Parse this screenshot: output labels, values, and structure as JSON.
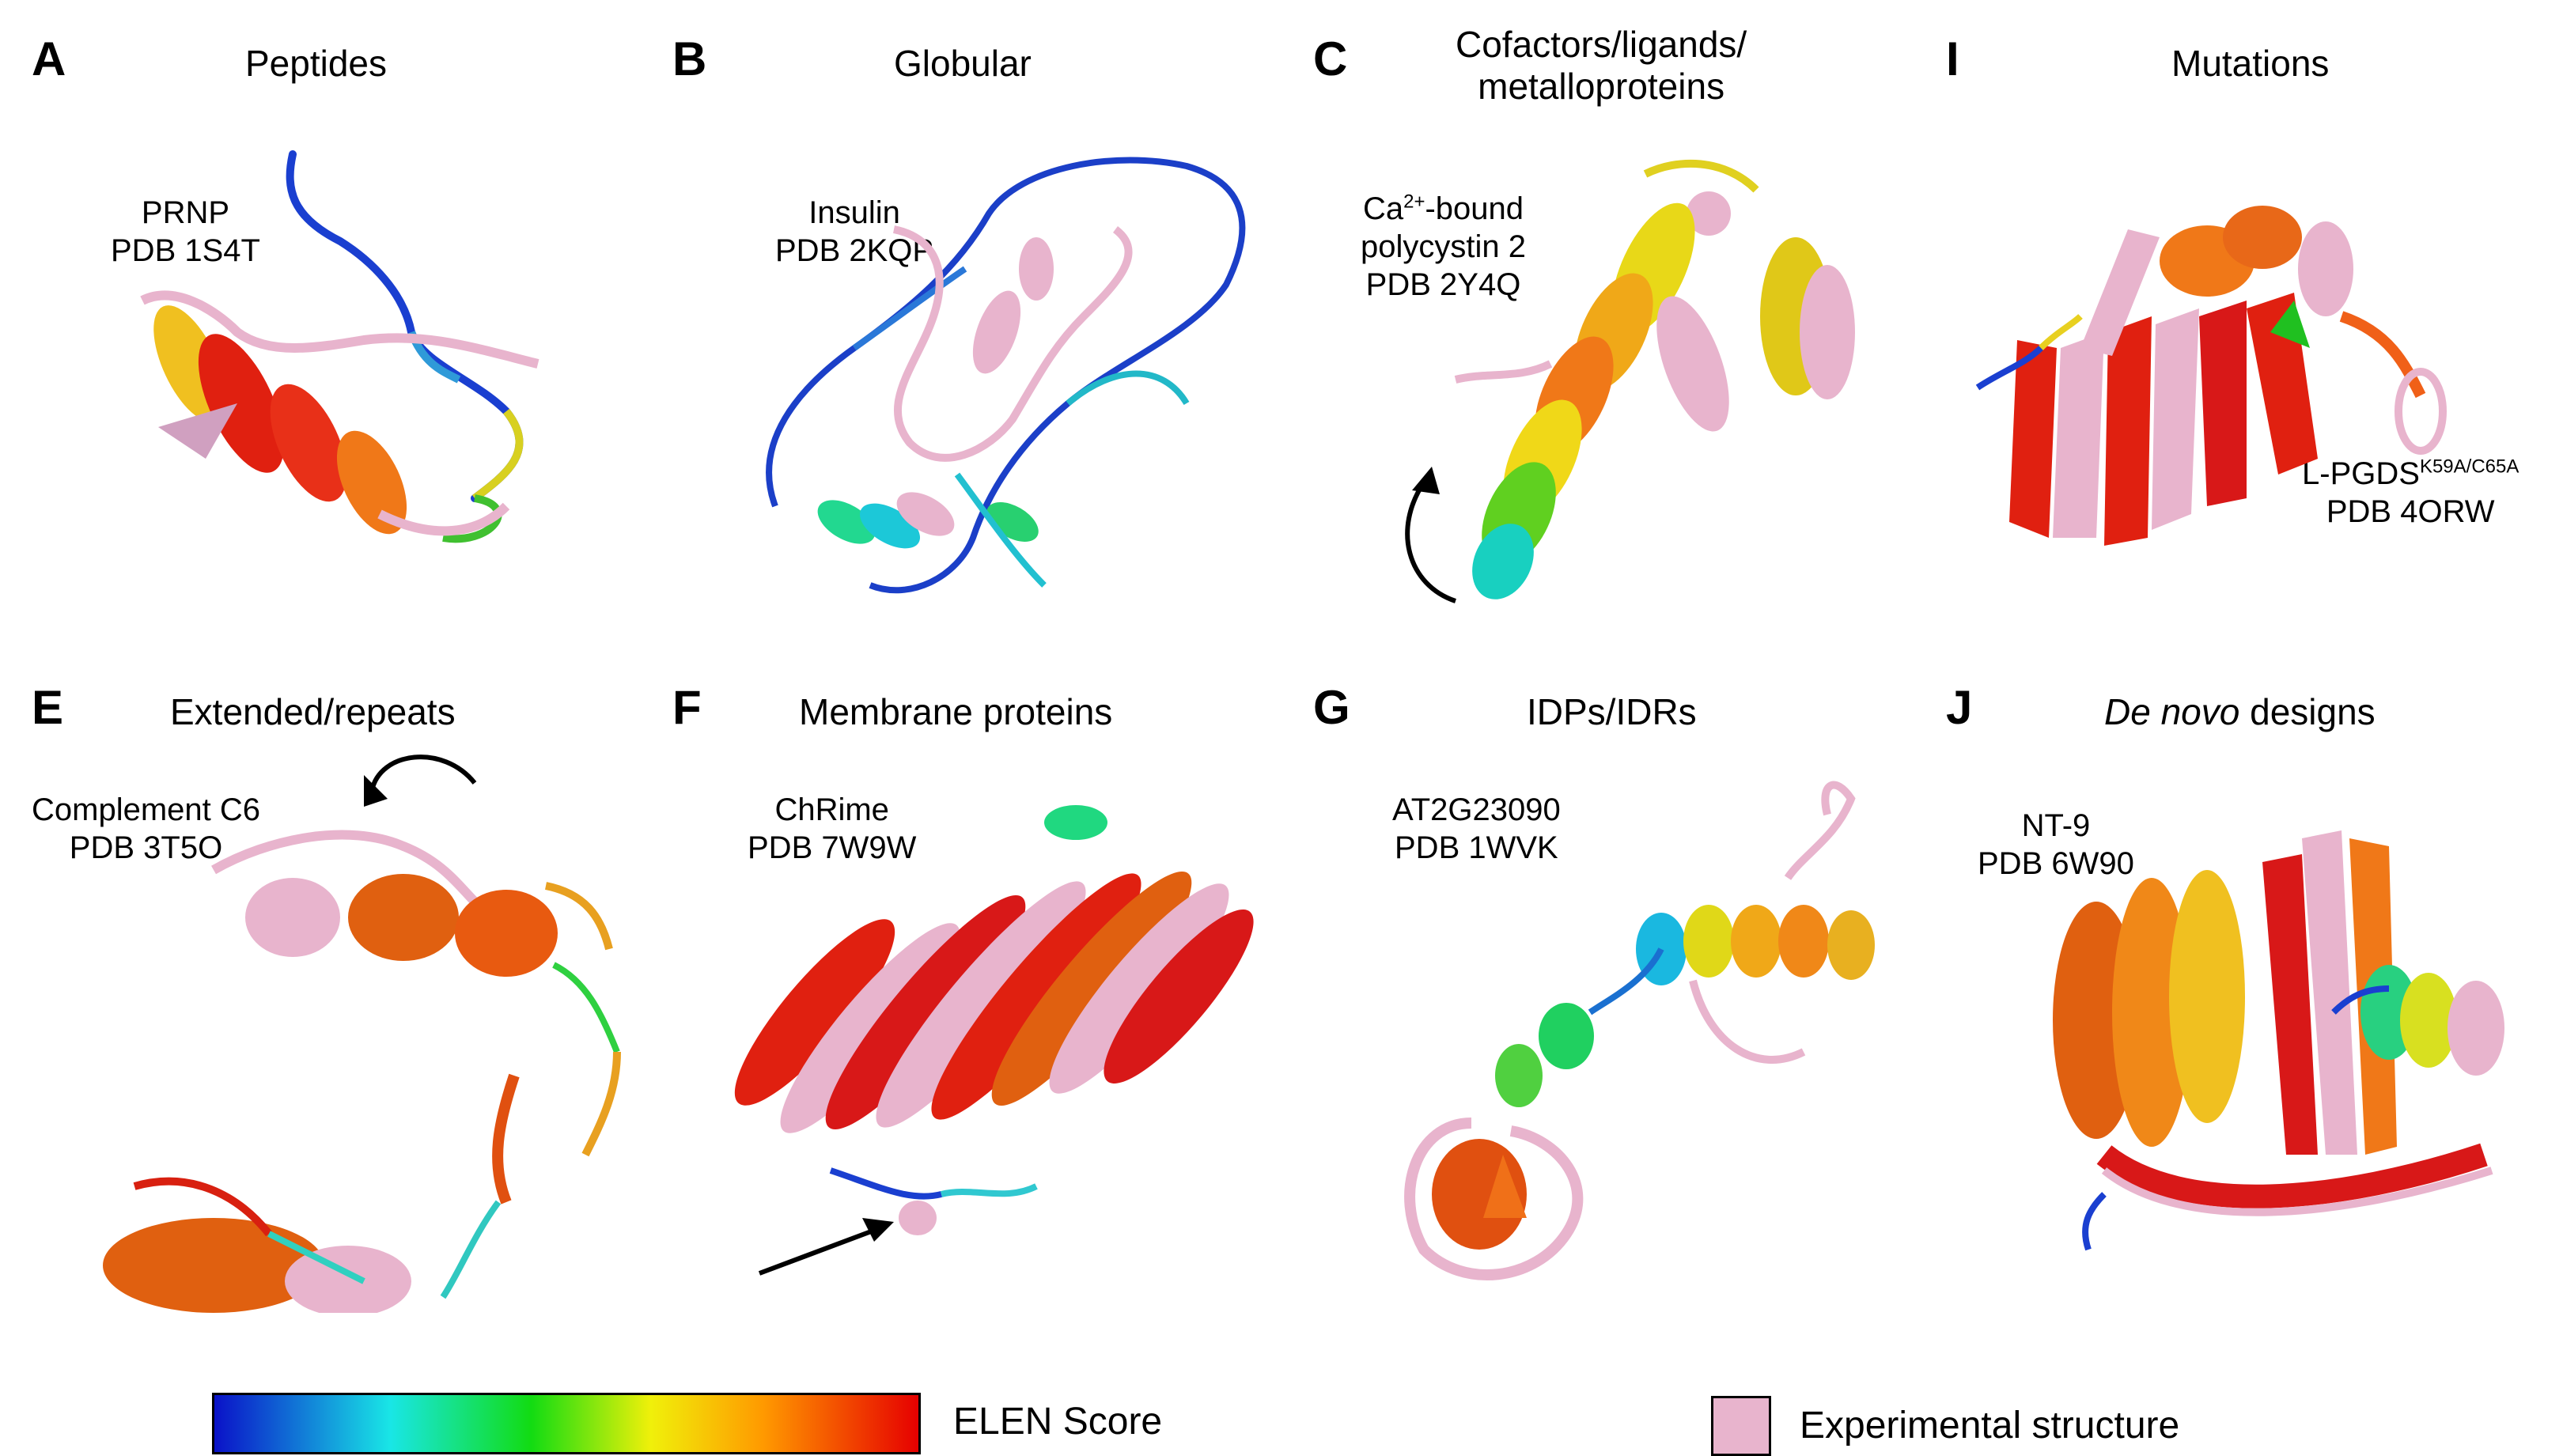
{
  "panels": [
    {
      "letter": "A",
      "title": "Peptides",
      "note_lines": [
        "PRNP",
        "PDB 1S4T"
      ]
    },
    {
      "letter": "B",
      "title": "Globular",
      "note_lines": [
        "Insulin",
        "PDB 2KQP"
      ]
    },
    {
      "letter": "C",
      "title_lines": [
        "Cofactors/ligands/",
        "metalloproteins"
      ],
      "note_pre": "Ca",
      "note_sup": "2+",
      "note_post": "-bound",
      "note_lines": [
        "polycystin 2",
        "PDB 2Y4Q"
      ]
    },
    {
      "letter": "I",
      "title": "Mutations",
      "note_pre": "L-PGDS",
      "note_sup": "K59A/C65A",
      "note_lines": [
        "PDB 4ORW"
      ]
    },
    {
      "letter": "E",
      "title": "Extended/repeats",
      "note_lines": [
        "Complement C6",
        "PDB 3T5O"
      ]
    },
    {
      "letter": "F",
      "title": "Membrane proteins",
      "note_lines": [
        "ChRime",
        "PDB 7W9W"
      ]
    },
    {
      "letter": "G",
      "title": "IDPs/IDRs",
      "note_lines": [
        "AT2G23090",
        "PDB 1WVK"
      ]
    },
    {
      "letter": "J",
      "title_italic": "De novo",
      "title_rest": " designs",
      "note_lines": [
        "NT-9",
        "PDB 6W90"
      ]
    }
  ],
  "legend": {
    "gradient_label": "ELEN Score",
    "gradient_colors": [
      "#0a12c8",
      "#19e6e6",
      "#12dc12",
      "#f0f00a",
      "#ff9900",
      "#e60000"
    ],
    "experimental_label": "Experimental structure",
    "experimental_color": "#e8b4cd"
  }
}
